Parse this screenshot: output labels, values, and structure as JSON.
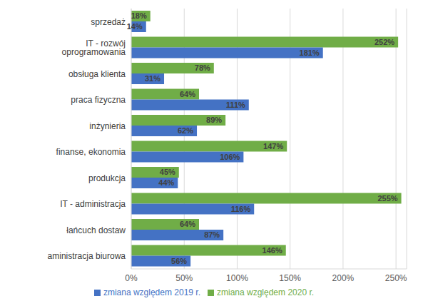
{
  "chart_data": {
    "type": "bar",
    "orientation": "horizontal",
    "categories": [
      "sprzedaż",
      "IT - rozwój oprogramowania",
      "obsługa klienta",
      "praca fizyczna",
      "inżynieria",
      "finanse, ekonomia",
      "produkcja",
      "IT - administracja",
      "łańcuch dostaw",
      "aministracja biurowa"
    ],
    "series": [
      {
        "name": "zmiana względem 2020 r.",
        "color": "#70ad47",
        "values": [
          18,
          252,
          78,
          64,
          89,
          147,
          45,
          255,
          64,
          146
        ],
        "value_labels": [
          "18%",
          "252%",
          "78%",
          "64%",
          "89%",
          "147%",
          "45%",
          "255%",
          "64%",
          "146%"
        ]
      },
      {
        "name": "zmiana względem 2019 r.",
        "color": "#4472c4",
        "values": [
          14,
          181,
          31,
          111,
          62,
          106,
          44,
          116,
          87,
          56
        ],
        "value_labels": [
          "14%",
          "181%",
          "31%",
          "111%",
          "62%",
          "106%",
          "44%",
          "116%",
          "87%",
          "56%"
        ]
      }
    ],
    "xlim": [
      0,
      260
    ],
    "xticks": [
      {
        "value": 0,
        "label": "0%"
      },
      {
        "value": 50,
        "label": "50%"
      },
      {
        "value": 100,
        "label": "100%"
      },
      {
        "value": 150,
        "label": "150%"
      },
      {
        "value": 200,
        "label": "200%"
      },
      {
        "value": 250,
        "label": "250%"
      }
    ],
    "grid": true,
    "legend": "bottom",
    "data_labels": true
  }
}
